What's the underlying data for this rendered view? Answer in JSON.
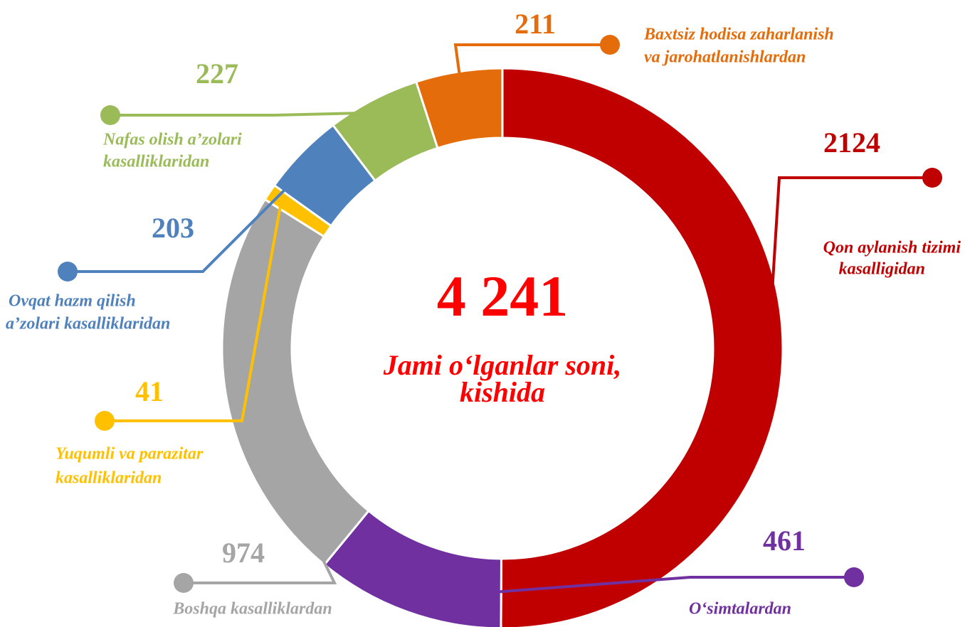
{
  "chart_data": {
    "type": "donut",
    "center_value": {
      "value": 4241,
      "label": "4 241"
    },
    "center_text": [
      "Jami o‘lganlar soni,",
      "kishida"
    ],
    "categories": [
      [
        "Qon aylanish tizimi",
        "kasalligidan"
      ],
      [
        "O‘simtalardan"
      ],
      [
        "Boshqa kasalliklardan"
      ],
      [
        "Yuqumli va parazitar",
        "kasalliklaridan"
      ],
      [
        "Ovqat hazm qilish",
        "a’zolari kasalliklaridan"
      ],
      [
        "Nafas olish a’zolari",
        "kasalliklaridan"
      ],
      [
        "Baxtsiz  hodisa zaharlanish",
        "va  jarohatlanishlardan"
      ]
    ],
    "values": [
      2124,
      461,
      974,
      41,
      203,
      227,
      211
    ],
    "colors": [
      "#c00000",
      "#7030a0",
      "#a5a5a5",
      "#ffc000",
      "#4f81bd",
      "#9bbb59",
      "#e46c0a"
    ]
  }
}
